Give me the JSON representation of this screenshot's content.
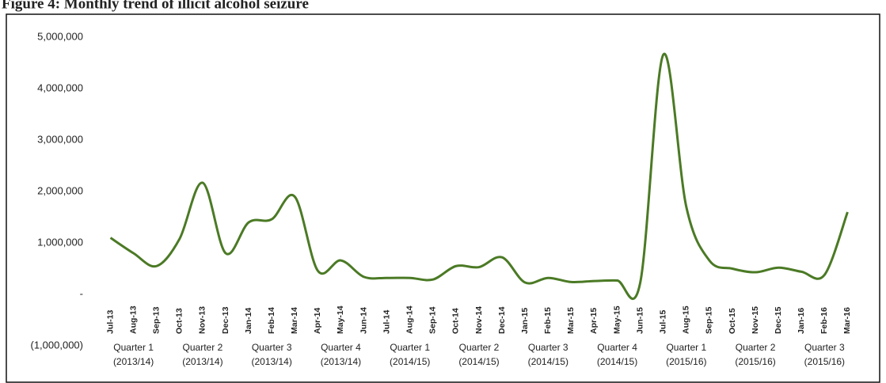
{
  "chart_data": {
    "type": "line",
    "title": "Figure 4: Monthly trend of illicit alcohol seizure",
    "categories": [
      "Jul-13",
      "Aug-13",
      "Sep-13",
      "Oct-13",
      "Nov-13",
      "Dec-13",
      "Jan-14",
      "Feb-14",
      "Mar-14",
      "Apr-14",
      "May-14",
      "Jun-14",
      "Jul-14",
      "Aug-14",
      "Sep-14",
      "Oct-14",
      "Nov-14",
      "Dec-14",
      "Jan-15",
      "Feb-15",
      "Mar-15",
      "Apr-15",
      "May-15",
      "Jun-15",
      "Jul-15",
      "Aug-15",
      "Sep-15",
      "Oct-15",
      "Nov-15",
      "Dec-15",
      "Jan-16",
      "Feb-16",
      "Mar-16"
    ],
    "series": [
      {
        "color": "#4b7a25",
        "values": [
          1100000,
          800000,
          550000,
          1080000,
          2170000,
          800000,
          1400000,
          1460000,
          1900000,
          460000,
          660000,
          340000,
          320000,
          320000,
          290000,
          550000,
          530000,
          720000,
          230000,
          320000,
          240000,
          260000,
          270000,
          230000,
          4660000,
          1700000,
          660000,
          500000,
          430000,
          520000,
          440000,
          380000,
          1600000
        ]
      }
    ],
    "groups": [
      {
        "label": "Quarter 1",
        "period": "(2013/14)"
      },
      {
        "label": "Quarter 2",
        "period": "(2013/14)"
      },
      {
        "label": "Quarter 3",
        "period": "(2013/14)"
      },
      {
        "label": "Quarter 4",
        "period": "(2013/14)"
      },
      {
        "label": "Quarter 1",
        "period": "(2014/15)"
      },
      {
        "label": "Quarter 2",
        "period": "(2014/15)"
      },
      {
        "label": "Quarter 3",
        "period": "(2014/15)"
      },
      {
        "label": "Quarter 4",
        "period": "(2014/15)"
      },
      {
        "label": "Quarter 1",
        "period": "(2015/16)"
      },
      {
        "label": "Quarter 2",
        "period": "(2015/16)"
      },
      {
        "label": "Quarter 3",
        "period": "(2015/16)"
      }
    ],
    "ylim": [
      -1000000,
      5000000
    ],
    "yticks": [
      {
        "value": -1000000,
        "label": "(1,000,000)"
      },
      {
        "value": 0,
        "label": "-"
      },
      {
        "value": 1000000,
        "label": "1,000,000"
      },
      {
        "value": 2000000,
        "label": "2,000,000"
      },
      {
        "value": 3000000,
        "label": "3,000,000"
      },
      {
        "value": 4000000,
        "label": "4,000,000"
      },
      {
        "value": 5000000,
        "label": "5,000,000"
      }
    ],
    "grid": false
  }
}
